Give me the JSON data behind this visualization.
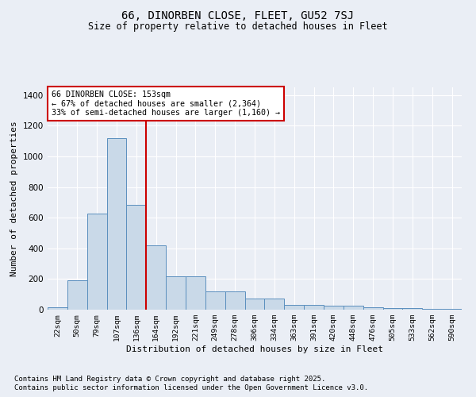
{
  "title1": "66, DINORBEN CLOSE, FLEET, GU52 7SJ",
  "title2": "Size of property relative to detached houses in Fleet",
  "xlabel": "Distribution of detached houses by size in Fleet",
  "ylabel": "Number of detached properties",
  "bar_labels": [
    "22sqm",
    "50sqm",
    "79sqm",
    "107sqm",
    "136sqm",
    "164sqm",
    "192sqm",
    "221sqm",
    "249sqm",
    "278sqm",
    "306sqm",
    "334sqm",
    "363sqm",
    "391sqm",
    "420sqm",
    "448sqm",
    "476sqm",
    "505sqm",
    "533sqm",
    "562sqm",
    "590sqm"
  ],
  "bar_values": [
    15,
    190,
    625,
    1120,
    685,
    420,
    215,
    215,
    120,
    120,
    75,
    75,
    30,
    30,
    25,
    25,
    15,
    10,
    10,
    5,
    5
  ],
  "bar_color": "#c9d9e8",
  "bar_edge_color": "#5b8fbe",
  "red_line_index": 4.5,
  "annotation_text": "66 DINORBEN CLOSE: 153sqm\n← 67% of detached houses are smaller (2,364)\n33% of semi-detached houses are larger (1,160) →",
  "annotation_box_color": "#ffffff",
  "annotation_box_edge": "#cc0000",
  "red_line_color": "#cc0000",
  "ylim": [
    0,
    1450
  ],
  "yticks": [
    0,
    200,
    400,
    600,
    800,
    1000,
    1200,
    1400
  ],
  "footnote1": "Contains HM Land Registry data © Crown copyright and database right 2025.",
  "footnote2": "Contains public sector information licensed under the Open Government Licence v3.0.",
  "bg_color": "#eaeef5",
  "plot_bg_color": "#eaeef5",
  "grid_color": "#ffffff"
}
